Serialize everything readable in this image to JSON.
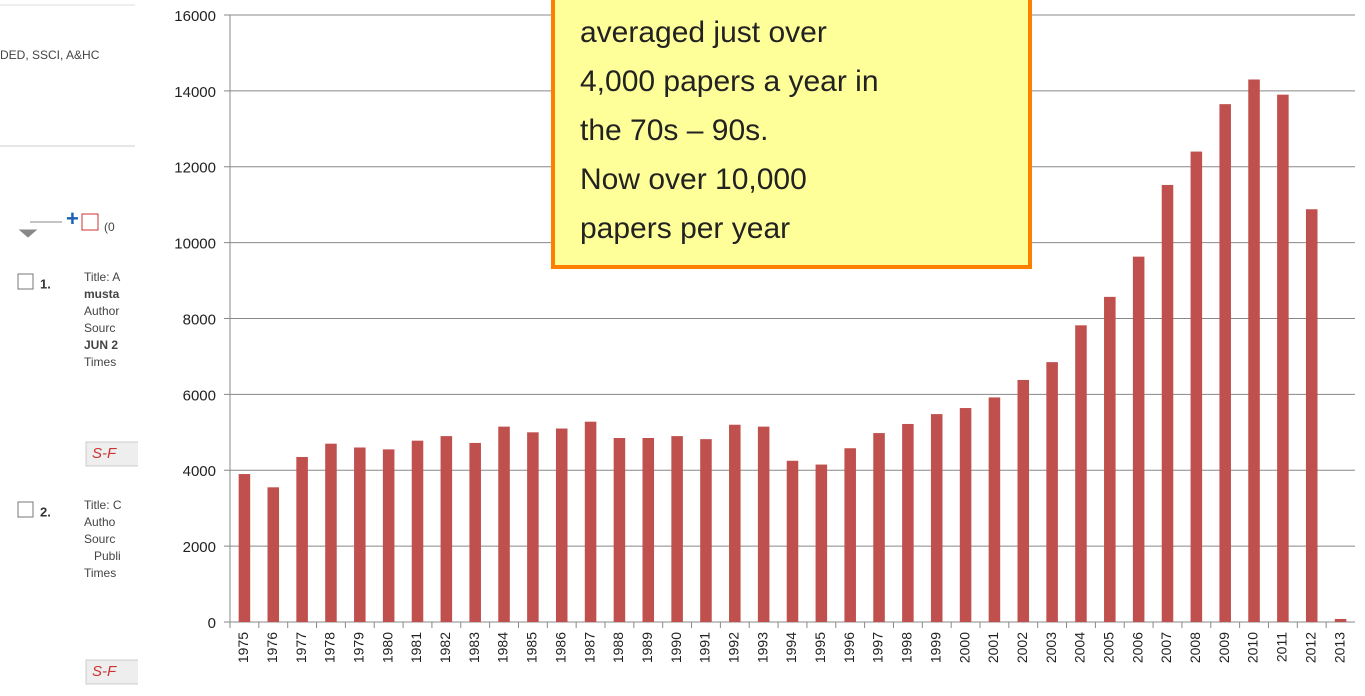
{
  "chart_data": {
    "type": "bar",
    "categories": [
      "1975",
      "1976",
      "1977",
      "1978",
      "1979",
      "1980",
      "1981",
      "1982",
      "1983",
      "1984",
      "1985",
      "1986",
      "1987",
      "1988",
      "1989",
      "1990",
      "1991",
      "1992",
      "1993",
      "1994",
      "1995",
      "1996",
      "1997",
      "1998",
      "1999",
      "2000",
      "2001",
      "2002",
      "2003",
      "2004",
      "2005",
      "2006",
      "2007",
      "2008",
      "2009",
      "2010",
      "2011",
      "2012",
      "2013"
    ],
    "values": [
      3900,
      3550,
      4350,
      4700,
      4600,
      4550,
      4780,
      4900,
      4720,
      5150,
      5000,
      5100,
      5280,
      4850,
      4850,
      4900,
      4820,
      5200,
      5150,
      4250,
      4150,
      4580,
      4980,
      5220,
      5480,
      5640,
      5920,
      6380,
      6850,
      7820,
      8570,
      9630,
      11520,
      12400,
      13650,
      14300,
      13900,
      10880,
      80
    ],
    "color": "#c0504d",
    "ylim": [
      0,
      16000
    ],
    "yticks": [
      0,
      2000,
      4000,
      6000,
      8000,
      10000,
      12000,
      14000,
      16000
    ],
    "grid": true,
    "annotation": [
      "averaged just over",
      "4,000 papers a year in",
      "the 70s – 90s.",
      "Now over 10,000",
      "papers per year"
    ]
  },
  "background_page": {
    "databases": "DED, SSCI, A&HC",
    "count": "(0",
    "records": [
      {
        "number": "1.",
        "lines": [
          "Title: A",
          "musta",
          "Author",
          "Sourc",
          "JUN 2",
          "Times"
        ],
        "button": "S-F"
      },
      {
        "number": "2.",
        "lines": [
          "Title: C",
          "Autho",
          "Sourc",
          "Publi",
          "Times"
        ],
        "button": "S-F"
      }
    ]
  }
}
